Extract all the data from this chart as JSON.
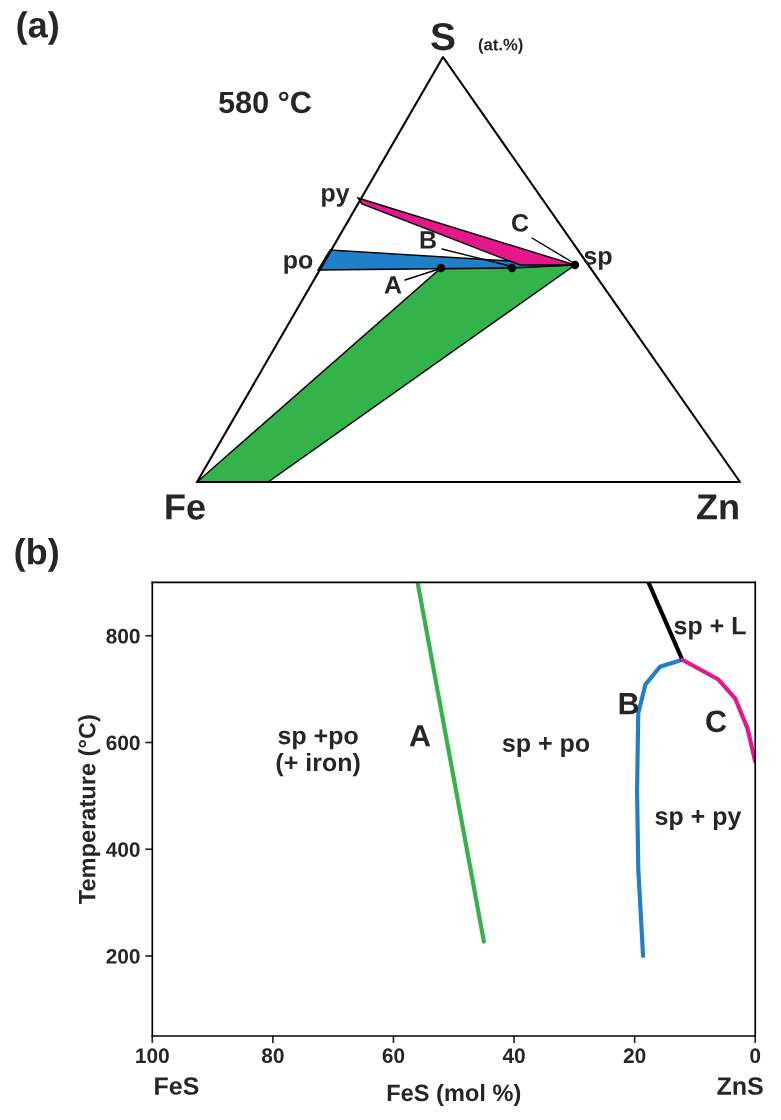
{
  "chart_data": [
    {
      "type": "other",
      "title": "(a)",
      "annotations": [
        "S",
        "(at.%)",
        "580 °C",
        "py",
        "po",
        "B",
        "C",
        "sp",
        "A",
        "Fe",
        "Zn"
      ]
    },
    {
      "type": "line",
      "title": "(b)",
      "xlabel": "FeS (mol %)",
      "ylabel": "Temperature (°C)",
      "xlim": [
        100,
        0
      ],
      "xticks": [
        100,
        80,
        60,
        40,
        20,
        0
      ],
      "ylim": [
        50,
        900
      ],
      "yticks": [
        200,
        400,
        600,
        800
      ],
      "grid": false,
      "legend": false,
      "marker": "none",
      "line_style": "solid",
      "series": [
        {
          "color": "#33b34a",
          "x": [
            56,
            45
          ],
          "values": [
            900,
            227
          ]
        },
        {
          "color": "#1f7fc8",
          "x": [
            18.6,
            19.4,
            19.6,
            19.4,
            18.2,
            15.8,
            12.1
          ],
          "values": [
            200,
            364,
            509,
            655,
            709,
            742,
            755
          ]
        },
        {
          "color": "#000000",
          "x": [
            17.7,
            12.1
          ],
          "values": [
            900,
            755
          ]
        },
        {
          "color": "#e6168c",
          "x": [
            12.1,
            6.1,
            3.3,
            1.3,
            0
          ],
          "values": [
            755,
            718,
            682,
            627,
            564
          ]
        }
      ],
      "annotations": [
        "A",
        "B",
        "C",
        "sp + L",
        "sp + po",
        "sp +po\n(+ iron)",
        "sp + py",
        "FeS",
        "ZnS"
      ]
    }
  ]
}
